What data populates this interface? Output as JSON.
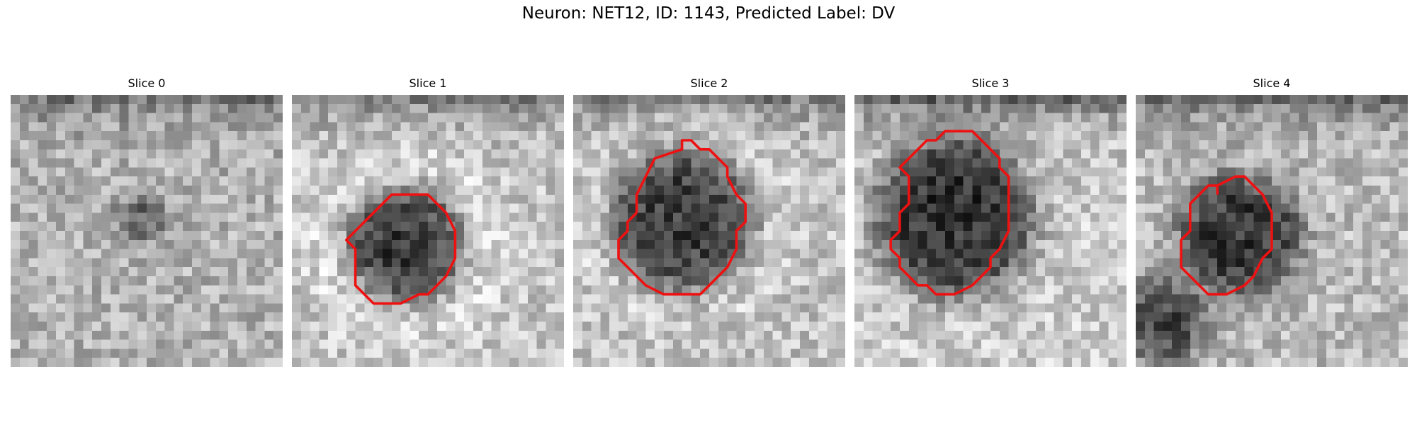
{
  "figure": {
    "suptitle": "Neuron: NET12, ID: 1143, Predicted Label: DV",
    "contour_color": "#ee1111",
    "colormap": "gray",
    "panels": [
      {
        "title": "Slice 0",
        "contour": []
      },
      {
        "title": "Slice 1",
        "contour": [
          [
            8,
            14
          ],
          [
            11,
            11
          ],
          [
            12,
            11
          ],
          [
            15,
            11
          ],
          [
            17,
            13
          ],
          [
            18,
            15
          ],
          [
            18,
            18
          ],
          [
            17,
            20
          ],
          [
            15,
            22
          ],
          [
            14,
            22
          ],
          [
            12,
            23
          ],
          [
            9,
            23
          ],
          [
            7,
            21
          ],
          [
            7,
            19
          ],
          [
            7,
            17
          ],
          [
            6,
            16
          ],
          [
            7,
            15
          ],
          [
            8,
            14
          ]
        ]
      },
      {
        "title": "Slice 2",
        "contour": [
          [
            7,
            13
          ],
          [
            7,
            11
          ],
          [
            9,
            7
          ],
          [
            12,
            6
          ],
          [
            12,
            5
          ],
          [
            13,
            5
          ],
          [
            14,
            6
          ],
          [
            15,
            6
          ],
          [
            16,
            7
          ],
          [
            17,
            8
          ],
          [
            17,
            9
          ],
          [
            18,
            11
          ],
          [
            19,
            12
          ],
          [
            19,
            14
          ],
          [
            18,
            15
          ],
          [
            18,
            16
          ],
          [
            18,
            17
          ],
          [
            17,
            19
          ],
          [
            15,
            21
          ],
          [
            14,
            22
          ],
          [
            12,
            22
          ],
          [
            10,
            22
          ],
          [
            8,
            21
          ],
          [
            7,
            20
          ],
          [
            6,
            19
          ],
          [
            5,
            18
          ],
          [
            5,
            17
          ],
          [
            5,
            16
          ],
          [
            6,
            15
          ],
          [
            6,
            14
          ],
          [
            7,
            13
          ]
        ]
      },
      {
        "title": "Slice 3",
        "contour": [
          [
            6,
            7
          ],
          [
            8,
            5
          ],
          [
            9,
            5
          ],
          [
            10,
            4
          ],
          [
            12,
            4
          ],
          [
            13,
            4
          ],
          [
            14,
            5
          ],
          [
            15,
            6
          ],
          [
            16,
            7
          ],
          [
            16,
            8
          ],
          [
            17,
            9
          ],
          [
            17,
            11
          ],
          [
            17,
            13
          ],
          [
            17,
            15
          ],
          [
            16,
            17
          ],
          [
            15,
            18
          ],
          [
            15,
            19
          ],
          [
            13,
            21
          ],
          [
            11,
            22
          ],
          [
            10,
            22
          ],
          [
            9,
            22
          ],
          [
            8,
            21
          ],
          [
            7,
            21
          ],
          [
            6,
            20
          ],
          [
            5,
            19
          ],
          [
            5,
            18
          ],
          [
            4,
            17
          ],
          [
            4,
            16
          ],
          [
            5,
            15
          ],
          [
            5,
            14
          ],
          [
            5,
            13
          ],
          [
            6,
            12
          ],
          [
            6,
            11
          ],
          [
            6,
            10
          ],
          [
            6,
            9
          ],
          [
            5,
            8
          ],
          [
            6,
            7
          ]
        ]
      },
      {
        "title": "Slice 4",
        "contour": [
          [
            9,
            11
          ],
          [
            9,
            10
          ],
          [
            11,
            9
          ],
          [
            12,
            9
          ],
          [
            13,
            10
          ],
          [
            14,
            11
          ],
          [
            15,
            13
          ],
          [
            15,
            15
          ],
          [
            15,
            16
          ],
          [
            15,
            17
          ],
          [
            14,
            18
          ],
          [
            13,
            20
          ],
          [
            12,
            21
          ],
          [
            10,
            22
          ],
          [
            8,
            22
          ],
          [
            7,
            21
          ],
          [
            6,
            20
          ],
          [
            5,
            19
          ],
          [
            5,
            16
          ],
          [
            6,
            15
          ],
          [
            6,
            12
          ],
          [
            7,
            11
          ],
          [
            8,
            10
          ],
          [
            9,
            10
          ],
          [
            9,
            11
          ]
        ]
      }
    ]
  }
}
